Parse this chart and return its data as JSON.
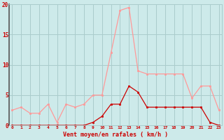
{
  "x": [
    0,
    1,
    2,
    3,
    4,
    5,
    6,
    7,
    8,
    9,
    10,
    11,
    12,
    13,
    14,
    15,
    16,
    17,
    18,
    19,
    20,
    21,
    22,
    23
  ],
  "y_rafales": [
    2.5,
    3.0,
    2.0,
    2.0,
    3.5,
    0.5,
    3.5,
    3.0,
    3.5,
    5.0,
    5.0,
    12.0,
    19.0,
    19.5,
    9.0,
    8.5,
    8.5,
    8.5,
    8.5,
    8.5,
    4.5,
    6.5,
    6.5,
    2.5
  ],
  "y_moyen": [
    0,
    0,
    0,
    0,
    0,
    0,
    0,
    0,
    0,
    0.5,
    1.5,
    3.5,
    3.5,
    6.5,
    5.5,
    3.0,
    3.0,
    3.0,
    3.0,
    3.0,
    3.0,
    3.0,
    0.5,
    0
  ],
  "xlabel": "Vent moyen/en rafales ( km/h )",
  "ylim": [
    0,
    20
  ],
  "yticks": [
    0,
    5,
    10,
    15,
    20
  ],
  "xticks": [
    0,
    1,
    2,
    3,
    4,
    5,
    6,
    7,
    8,
    9,
    10,
    11,
    12,
    13,
    14,
    15,
    16,
    17,
    18,
    19,
    20,
    21,
    22,
    23
  ],
  "bg_color": "#cdeaea",
  "line_color_rafales": "#ff9999",
  "line_color_moyen": "#cc0000",
  "grid_color": "#aacccc",
  "xlabel_color": "#cc0000"
}
